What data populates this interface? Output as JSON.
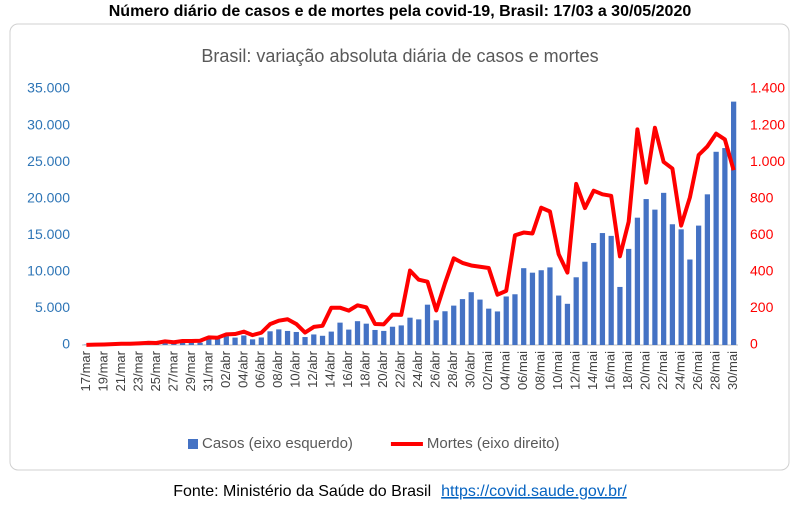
{
  "chart_data": {
    "type": "combo",
    "title": "Número diário de casos e de mortes pela covid-19, Brasil: 17/03 a 30/05/2020",
    "subtitle": "Brasil: variação absoluta diária de casos e mortes",
    "source": "Fonte: Ministério da Saúde do Brasil",
    "source_url": "https://covid.saude.gov.br/",
    "categories": [
      "17/mar",
      null,
      "19/mar",
      null,
      "21/mar",
      null,
      "23/mar",
      null,
      "25/mar",
      null,
      "27/mar",
      null,
      "29/mar",
      null,
      "31/mar",
      null,
      "02/abr",
      null,
      "04/abr",
      null,
      "06/abr",
      null,
      "08/abr",
      null,
      "10/abr",
      null,
      "12/abr",
      null,
      "14/abr",
      null,
      "16/abr",
      null,
      "18/abr",
      null,
      "20/abr",
      null,
      "22/abr",
      null,
      "24/abr",
      null,
      "26/abr",
      null,
      "28/abr",
      null,
      "30/abr",
      null,
      "02/mai",
      null,
      "04/mai",
      null,
      "06/mai",
      null,
      "08/mai",
      null,
      "10/mai",
      null,
      "12/mai",
      null,
      "14/mai",
      null,
      "16/mai",
      null,
      "18/mai",
      null,
      "20/mai",
      null,
      "22/mai",
      null,
      "24/mai",
      null,
      "26/mai",
      null,
      "28/mai",
      null,
      "30/mai"
    ],
    "series": [
      {
        "name": "Casos (eixo esquerdo)",
        "type": "bar",
        "axis": "y",
        "color": "#4472c4",
        "values": [
          57,
          137,
          193,
          283,
          224,
          418,
          345,
          310,
          232,
          482,
          502,
          487,
          352,
          323,
          1138,
          1119,
          1208,
          1012,
          1304,
          770,
          1031,
          1873,
          2136,
          1922,
          1781,
          1089,
          1442,
          1261,
          1832,
          3058,
          2105,
          3257,
          2917,
          2055,
          1927,
          2498,
          2678,
          3735,
          3503,
          5514,
          3379,
          4613,
          5385,
          6276,
          7218,
          6209,
          4970,
          4588,
          6633,
          6935,
          10503,
          9888,
          10222,
          10611,
          6760,
          5632,
          9258,
          11385,
          13944,
          15305,
          14919,
          7938,
          13140,
          17408,
          19951,
          18508,
          20803,
          16508,
          15813,
          11687,
          16324,
          20599,
          26417,
          26928,
          33274
        ]
      },
      {
        "name": "Mortes (eixo direito)",
        "type": "line",
        "axis": "y2",
        "color": "#ff0000",
        "values": [
          1,
          2,
          3,
          5,
          7,
          7,
          9,
          12,
          11,
          20,
          15,
          22,
          22,
          23,
          42,
          40,
          58,
          60,
          73,
          54,
          67,
          114,
          133,
          141,
          115,
          68,
          99,
          105,
          204,
          204,
          188,
          217,
          206,
          115,
          113,
          166,
          165,
          407,
          357,
          346,
          189,
          338,
          474,
          449,
          435,
          428,
          421,
          275,
          296,
          600,
          615,
          610,
          751,
          730,
          496,
          396,
          881,
          749,
          844,
          824,
          816,
          485,
          674,
          1179,
          888,
          1188,
          1001,
          965,
          653,
          807,
          1039,
          1086,
          1156,
          1124,
          956
        ]
      }
    ],
    "ylim": [
      0,
      35000
    ],
    "yticks": [
      0,
      {
        "value": 5000,
        "label": "5.000"
      },
      {
        "value": 10000,
        "label": "10.000"
      },
      {
        "value": 15000,
        "label": "15.000"
      },
      {
        "value": 20000,
        "label": "20.000"
      },
      {
        "value": 25000,
        "label": "25.000"
      },
      {
        "value": 30000,
        "label": "30.000"
      },
      {
        "value": 35000,
        "label": "35.000"
      }
    ],
    "y2lim": [
      0,
      1400
    ],
    "y2ticks": [
      0,
      200,
      400,
      600,
      800,
      {
        "value": 1000,
        "label": "1.000"
      },
      {
        "value": 1200,
        "label": "1.200"
      },
      {
        "value": 1400,
        "label": "1.400"
      }
    ],
    "ytick_color": "#2e75b6",
    "y2tick_color": "#ff0000",
    "grid": false,
    "legend": "bottom"
  }
}
